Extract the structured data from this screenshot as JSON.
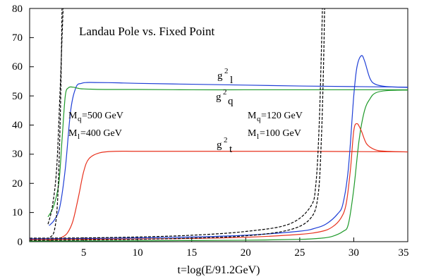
{
  "chart_data": {
    "type": "line",
    "title": "Landau Pole vs. Fixed Point",
    "xlabel": "t=log(E/91.2GeV)",
    "ylabel": "",
    "xlim": [
      0,
      35
    ],
    "ylim": [
      0,
      80
    ],
    "x_ticks": [
      "5",
      "10",
      "15",
      "20",
      "25",
      "30",
      "35"
    ],
    "y_ticks": [
      "0",
      "10",
      "20",
      "30",
      "40",
      "50",
      "60",
      "70",
      "80"
    ],
    "grid": false,
    "legend": "none",
    "curve_labels": [
      {
        "base": "g",
        "sup": "2",
        "sub": "l"
      },
      {
        "base": "g",
        "sup": "2",
        "sub": "q"
      },
      {
        "base": "g",
        "sup": "2",
        "sub": "t"
      }
    ],
    "annotations": {
      "left": {
        "line1": "M₉=500 GeV",
        "line2": "Mₗ=400 GeV"
      },
      "right": {
        "line1": "M₉=120 GeV",
        "line2": "Mₗ=100 GeV"
      }
    },
    "mass_labels": {
      "left_q": {
        "base": "M",
        "sub": "q",
        "rest": "=500 GeV"
      },
      "left_l": {
        "base": "M",
        "sub": "l",
        "rest": "=400 GeV"
      },
      "right_q": {
        "base": "M",
        "sub": "q",
        "rest": "=120 GeV"
      },
      "right_l": {
        "base": "M",
        "sub": "l",
        "rest": "=100 GeV"
      }
    },
    "series": [
      {
        "color": "#1f3fd6",
        "style": "solid",
        "x": [
          1.8,
          2.3,
          2.8,
          3.3,
          3.8,
          4.3,
          4.8,
          5.3,
          6,
          8,
          10,
          15,
          20,
          25,
          30,
          35
        ],
        "y": [
          5.5,
          7.5,
          12,
          25,
          45,
          53,
          54.3,
          54.6,
          54.6,
          54.5,
          54.3,
          54,
          53.7,
          53.4,
          53.2,
          53.0
        ]
      },
      {
        "color": "#1f9a2a",
        "style": "solid",
        "x": [
          1.7,
          2.2,
          2.7,
          3.0,
          3.3,
          3.6,
          4.0,
          4.5,
          5,
          7,
          10,
          15,
          20,
          25,
          30,
          35
        ],
        "y": [
          8.5,
          12,
          20,
          35,
          50,
          52.8,
          53,
          52.6,
          52.4,
          52.2,
          52.2,
          52.1,
          52.1,
          52.1,
          52.1,
          52.1
        ]
      },
      {
        "color": "#e8321e",
        "style": "solid",
        "x": [
          1.8,
          2.5,
          3.0,
          3.5,
          4.0,
          4.5,
          5.0,
          5.5,
          6.5,
          8,
          10,
          15,
          20,
          25,
          30,
          35
        ],
        "y": [
          0.5,
          0.8,
          1.5,
          3,
          7,
          15,
          24,
          28.5,
          30.5,
          31,
          31,
          31,
          31,
          31,
          30.9,
          30.8
        ]
      },
      {
        "color": "#1f3fd6",
        "style": "solid",
        "x": [
          0,
          5,
          10,
          15,
          20,
          25,
          26.5,
          27.5,
          28.5,
          29,
          29.5,
          30,
          30.3,
          30.7,
          31,
          31.5,
          32,
          33,
          35
        ],
        "y": [
          1.0,
          1.1,
          1.3,
          1.6,
          2.2,
          3.6,
          4.7,
          6.2,
          9.5,
          13,
          25,
          50,
          60,
          63.8,
          62,
          56,
          54,
          53.2,
          52.9
        ]
      },
      {
        "color": "#1f9a2a",
        "style": "solid",
        "x": [
          0,
          5,
          10,
          15,
          20,
          25,
          27,
          28,
          29,
          29.5,
          30,
          30.5,
          31,
          31.5,
          32,
          33,
          35
        ],
        "y": [
          0.2,
          0.25,
          0.3,
          0.4,
          0.5,
          0.8,
          1.2,
          1.8,
          3.5,
          6,
          18,
          35,
          45,
          49,
          51,
          51.8,
          52
        ]
      },
      {
        "color": "#e8321e",
        "style": "solid",
        "x": [
          0,
          5,
          10,
          15,
          20,
          25,
          27,
          28,
          28.8,
          29.3,
          29.7,
          30.0,
          30.3,
          30.7,
          31.2,
          32,
          33,
          35
        ],
        "y": [
          0.7,
          0.8,
          0.9,
          1.1,
          1.5,
          2.5,
          3.5,
          5,
          8,
          13,
          25,
          38,
          40.5,
          38,
          33.5,
          31.5,
          31,
          30.8
        ]
      },
      {
        "color": "#000000",
        "style": "dashed",
        "x": [
          1.7,
          2.1,
          2.5,
          2.8,
          3.0,
          3.1
        ],
        "y": [
          6,
          12,
          25,
          50,
          70,
          80
        ]
      },
      {
        "color": "#000000",
        "style": "dashed",
        "x": [
          1.9,
          2.3,
          2.6,
          2.85,
          3.0
        ],
        "y": [
          1.5,
          4,
          15,
          45,
          80
        ]
      },
      {
        "color": "#000000",
        "style": "dashed",
        "x": [
          0,
          5,
          10,
          15,
          20,
          24,
          26,
          26.5,
          26.8,
          27.0,
          27.1
        ],
        "y": [
          1.2,
          1.3,
          1.6,
          2.2,
          3.5,
          6,
          12,
          20,
          40,
          65,
          80
        ]
      },
      {
        "color": "#000000",
        "style": "dashed",
        "x": [
          0,
          5,
          10,
          15,
          20,
          24,
          26,
          26.7,
          27.0,
          27.2,
          27.3
        ],
        "y": [
          0.5,
          0.6,
          0.8,
          1.2,
          2,
          4,
          8,
          16,
          35,
          60,
          80
        ]
      }
    ]
  }
}
